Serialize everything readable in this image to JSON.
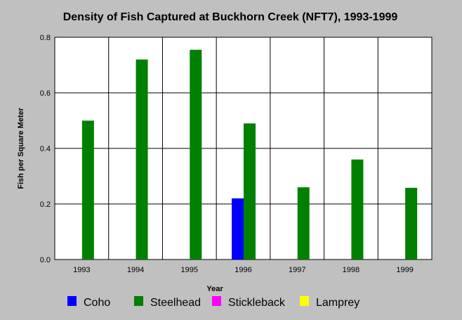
{
  "chart_data": {
    "type": "bar",
    "title": "Density of Fish Captured at Buckhorn Creek (NFT7), 1993-1999",
    "xlabel": "Year",
    "ylabel": "Fish per Square Meter",
    "categories": [
      "1993",
      "1994",
      "1995",
      "1996",
      "1997",
      "1998",
      "1999"
    ],
    "ylim": [
      0,
      0.8
    ],
    "yticks": [
      "0.0",
      "0.2",
      "0.4",
      "0.6",
      "0.8"
    ],
    "grid": true,
    "legend_position": "bottom",
    "series": [
      {
        "name": "Coho",
        "color": "#0000ff",
        "values": [
          0,
          0,
          0,
          0.22,
          0,
          0,
          0
        ]
      },
      {
        "name": "Steelhead",
        "color": "#008000",
        "values": [
          0.5,
          0.72,
          0.755,
          0.49,
          0.26,
          0.36,
          0.258
        ]
      },
      {
        "name": "Stickleback",
        "color": "#ff00ff",
        "values": [
          0,
          0,
          0,
          0,
          0,
          0,
          0
        ]
      },
      {
        "name": "Lamprey",
        "color": "#ffff00",
        "values": [
          0,
          0,
          0,
          0,
          0,
          0,
          0
        ]
      }
    ]
  }
}
